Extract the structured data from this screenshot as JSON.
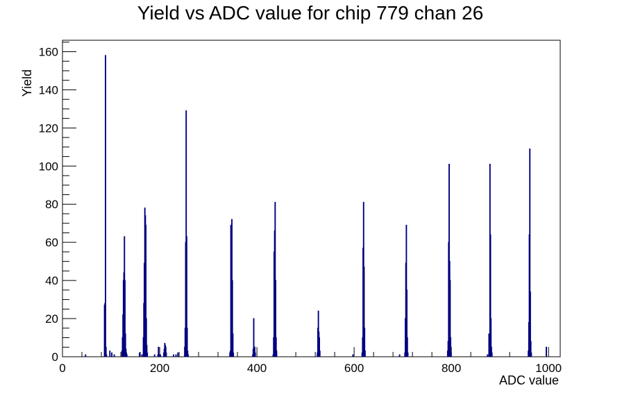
{
  "chart_data": {
    "type": "histogram",
    "title": "Yield vs ADC value for chip 779 chan 26",
    "xlabel": "ADC value",
    "ylabel": "Yield",
    "xlim": [
      0,
      1024
    ],
    "ylim": [
      0,
      166
    ],
    "x_ticks": [
      0,
      200,
      400,
      600,
      800,
      1000
    ],
    "y_ticks": [
      0,
      20,
      40,
      60,
      80,
      100,
      120,
      140,
      160
    ],
    "grid": false,
    "legend": "none",
    "line_color": "#000080",
    "bin_width": 1,
    "bins": [
      {
        "x": 47,
        "y": 1
      },
      {
        "x": 86,
        "y": 27
      },
      {
        "x": 87,
        "y": 28
      },
      {
        "x": 88,
        "y": 158
      },
      {
        "x": 89,
        "y": 5
      },
      {
        "x": 90,
        "y": 1
      },
      {
        "x": 97,
        "y": 3
      },
      {
        "x": 101,
        "y": 2
      },
      {
        "x": 106,
        "y": 1
      },
      {
        "x": 122,
        "y": 3
      },
      {
        "x": 123,
        "y": 10
      },
      {
        "x": 124,
        "y": 22
      },
      {
        "x": 125,
        "y": 40
      },
      {
        "x": 126,
        "y": 44
      },
      {
        "x": 127,
        "y": 63
      },
      {
        "x": 128,
        "y": 40
      },
      {
        "x": 129,
        "y": 12
      },
      {
        "x": 130,
        "y": 4
      },
      {
        "x": 131,
        "y": 2
      },
      {
        "x": 132,
        "y": 1
      },
      {
        "x": 158,
        "y": 2
      },
      {
        "x": 163,
        "y": 1
      },
      {
        "x": 166,
        "y": 10
      },
      {
        "x": 167,
        "y": 28
      },
      {
        "x": 168,
        "y": 49
      },
      {
        "x": 169,
        "y": 78
      },
      {
        "x": 170,
        "y": 74
      },
      {
        "x": 171,
        "y": 69
      },
      {
        "x": 172,
        "y": 20
      },
      {
        "x": 173,
        "y": 6
      },
      {
        "x": 174,
        "y": 2
      },
      {
        "x": 189,
        "y": 1
      },
      {
        "x": 196,
        "y": 1
      },
      {
        "x": 197,
        "y": 5
      },
      {
        "x": 199,
        "y": 1
      },
      {
        "x": 201,
        "y": 1
      },
      {
        "x": 208,
        "y": 2
      },
      {
        "x": 209,
        "y": 4
      },
      {
        "x": 210,
        "y": 7
      },
      {
        "x": 211,
        "y": 6
      },
      {
        "x": 212,
        "y": 5
      },
      {
        "x": 213,
        "y": 2
      },
      {
        "x": 228,
        "y": 1
      },
      {
        "x": 233,
        "y": 1
      },
      {
        "x": 237,
        "y": 2
      },
      {
        "x": 251,
        "y": 5
      },
      {
        "x": 252,
        "y": 15
      },
      {
        "x": 253,
        "y": 60
      },
      {
        "x": 254,
        "y": 129
      },
      {
        "x": 255,
        "y": 63
      },
      {
        "x": 256,
        "y": 15
      },
      {
        "x": 257,
        "y": 3
      },
      {
        "x": 258,
        "y": 1
      },
      {
        "x": 344,
        "y": 2
      },
      {
        "x": 345,
        "y": 3
      },
      {
        "x": 346,
        "y": 69
      },
      {
        "x": 347,
        "y": 60
      },
      {
        "x": 348,
        "y": 72
      },
      {
        "x": 349,
        "y": 40
      },
      {
        "x": 350,
        "y": 12
      },
      {
        "x": 351,
        "y": 2
      },
      {
        "x": 391,
        "y": 1
      },
      {
        "x": 392,
        "y": 4
      },
      {
        "x": 393,
        "y": 20
      },
      {
        "x": 394,
        "y": 5
      },
      {
        "x": 395,
        "y": 5
      },
      {
        "x": 396,
        "y": 2
      },
      {
        "x": 433,
        "y": 1
      },
      {
        "x": 434,
        "y": 10
      },
      {
        "x": 435,
        "y": 55
      },
      {
        "x": 436,
        "y": 66
      },
      {
        "x": 437,
        "y": 81
      },
      {
        "x": 438,
        "y": 40
      },
      {
        "x": 439,
        "y": 10
      },
      {
        "x": 440,
        "y": 3
      },
      {
        "x": 524,
        "y": 2
      },
      {
        "x": 525,
        "y": 15
      },
      {
        "x": 526,
        "y": 24
      },
      {
        "x": 527,
        "y": 13
      },
      {
        "x": 528,
        "y": 10
      },
      {
        "x": 529,
        "y": 3
      },
      {
        "x": 597,
        "y": 1
      },
      {
        "x": 616,
        "y": 2
      },
      {
        "x": 617,
        "y": 10
      },
      {
        "x": 618,
        "y": 57
      },
      {
        "x": 619,
        "y": 81
      },
      {
        "x": 620,
        "y": 47
      },
      {
        "x": 621,
        "y": 15
      },
      {
        "x": 622,
        "y": 3
      },
      {
        "x": 693,
        "y": 1
      },
      {
        "x": 704,
        "y": 2
      },
      {
        "x": 705,
        "y": 20
      },
      {
        "x": 706,
        "y": 49
      },
      {
        "x": 707,
        "y": 69
      },
      {
        "x": 708,
        "y": 35
      },
      {
        "x": 709,
        "y": 10
      },
      {
        "x": 710,
        "y": 2
      },
      {
        "x": 792,
        "y": 3
      },
      {
        "x": 793,
        "y": 8
      },
      {
        "x": 794,
        "y": 60
      },
      {
        "x": 795,
        "y": 101
      },
      {
        "x": 796,
        "y": 50
      },
      {
        "x": 797,
        "y": 40
      },
      {
        "x": 798,
        "y": 10
      },
      {
        "x": 799,
        "y": 2
      },
      {
        "x": 874,
        "y": 1
      },
      {
        "x": 877,
        "y": 12
      },
      {
        "x": 878,
        "y": 7
      },
      {
        "x": 879,
        "y": 101
      },
      {
        "x": 880,
        "y": 64
      },
      {
        "x": 881,
        "y": 20
      },
      {
        "x": 882,
        "y": 5
      },
      {
        "x": 883,
        "y": 2
      },
      {
        "x": 958,
        "y": 3
      },
      {
        "x": 959,
        "y": 18
      },
      {
        "x": 960,
        "y": 64
      },
      {
        "x": 961,
        "y": 109
      },
      {
        "x": 962,
        "y": 34
      },
      {
        "x": 963,
        "y": 8
      },
      {
        "x": 964,
        "y": 2
      },
      {
        "x": 995,
        "y": 5
      }
    ]
  }
}
